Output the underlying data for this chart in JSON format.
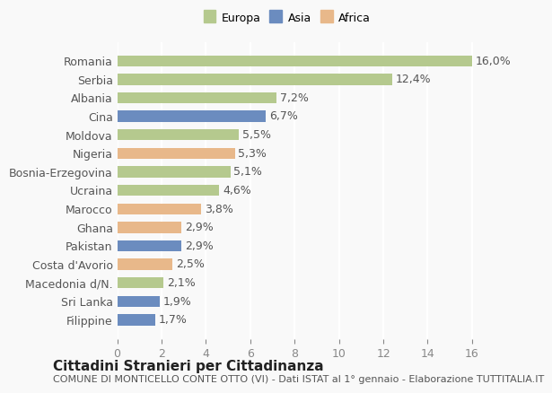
{
  "countries": [
    "Romania",
    "Serbia",
    "Albania",
    "Cina",
    "Moldova",
    "Nigeria",
    "Bosnia-Erzegovina",
    "Ucraina",
    "Marocco",
    "Ghana",
    "Pakistan",
    "Costa d'Avorio",
    "Macedonia d/N.",
    "Sri Lanka",
    "Filippine"
  ],
  "values": [
    16.0,
    12.4,
    7.2,
    6.7,
    5.5,
    5.3,
    5.1,
    4.6,
    3.8,
    2.9,
    2.9,
    2.5,
    2.1,
    1.9,
    1.7
  ],
  "labels": [
    "16,0%",
    "12,4%",
    "7,2%",
    "6,7%",
    "5,5%",
    "5,3%",
    "5,1%",
    "4,6%",
    "3,8%",
    "2,9%",
    "2,9%",
    "2,5%",
    "2,1%",
    "1,9%",
    "1,7%"
  ],
  "continents": [
    "Europa",
    "Europa",
    "Europa",
    "Asia",
    "Europa",
    "Africa",
    "Europa",
    "Europa",
    "Africa",
    "Africa",
    "Asia",
    "Africa",
    "Europa",
    "Asia",
    "Asia"
  ],
  "colors": {
    "Europa": "#b5c98e",
    "Asia": "#6b8cbf",
    "Africa": "#e8b88a"
  },
  "legend_colors": {
    "Europa": "#b5c98e",
    "Asia": "#6b8cbf",
    "Africa": "#e8b88a"
  },
  "xlim": [
    0,
    17
  ],
  "xticks": [
    0,
    2,
    4,
    6,
    8,
    10,
    12,
    14,
    16
  ],
  "title": "Cittadini Stranieri per Cittadinanza",
  "subtitle": "COMUNE DI MONTICELLO CONTE OTTO (VI) - Dati ISTAT al 1° gennaio - Elaborazione TUTTITALIA.IT",
  "background_color": "#f9f9f9",
  "grid_color": "#ffffff",
  "bar_height": 0.6,
  "label_fontsize": 9,
  "tick_fontsize": 9,
  "title_fontsize": 11,
  "subtitle_fontsize": 8
}
